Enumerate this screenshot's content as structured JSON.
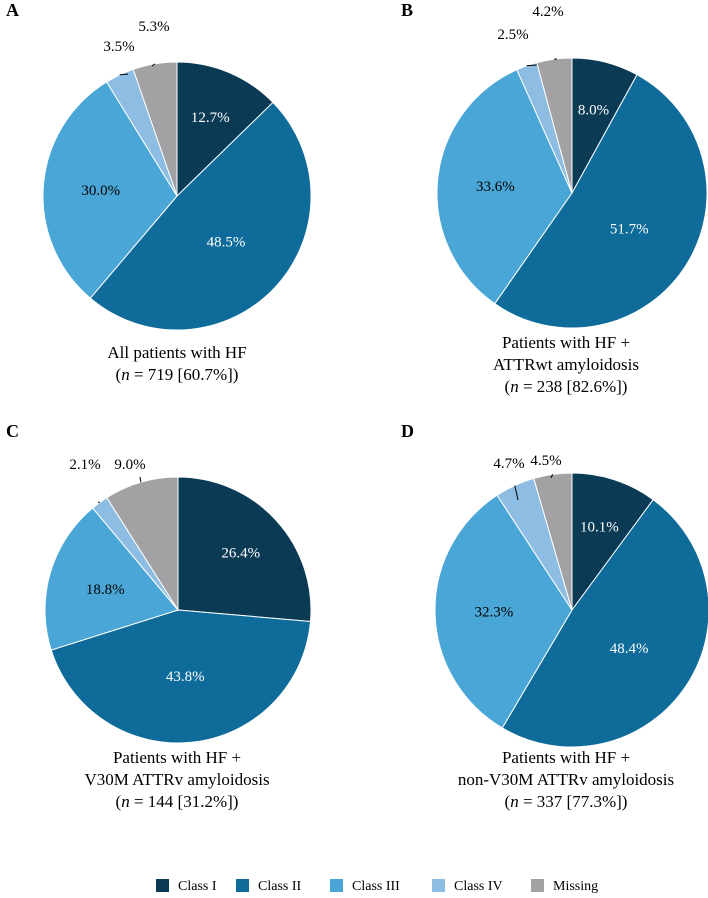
{
  "legend": [
    {
      "label": "Class I",
      "color": "#0b3a55"
    },
    {
      "label": "Class II",
      "color": "#0e6b9a"
    },
    {
      "label": "Class III",
      "color": "#4aa6d6"
    },
    {
      "label": "Class IV",
      "color": "#8dbde2"
    },
    {
      "label": "Missing",
      "color": "#a2a2a5"
    }
  ],
  "chart_data": [
    {
      "type": "pie",
      "panel": "A",
      "categories": [
        "Class I",
        "Class II",
        "Class III",
        "Class IV",
        "Missing"
      ],
      "values": [
        12.7,
        48.5,
        30.0,
        3.5,
        5.3
      ],
      "labels": [
        "12.7%",
        "48.5%",
        "30.0%",
        "3.5%",
        "5.3%"
      ],
      "caption": [
        "All patients with HF"
      ],
      "n_prefix": "(",
      "n_var": "n",
      "n_suffix": " = 719 [60.7%])"
    },
    {
      "type": "pie",
      "panel": "B",
      "categories": [
        "Class I",
        "Class II",
        "Class III",
        "Class IV",
        "Missing"
      ],
      "values": [
        8.0,
        51.7,
        33.6,
        2.5,
        4.2
      ],
      "labels": [
        "8.0%",
        "51.7%",
        "33.6%",
        "2.5%",
        "4.2%"
      ],
      "caption": [
        "Patients with HF +",
        "ATTRwt amyloidosis"
      ],
      "n_prefix": "(",
      "n_var": "n",
      "n_suffix": " = 238 [82.6%])"
    },
    {
      "type": "pie",
      "panel": "C",
      "categories": [
        "Class I",
        "Class II",
        "Class III",
        "Class IV",
        "Missing"
      ],
      "values": [
        26.4,
        43.8,
        18.8,
        2.1,
        9.0
      ],
      "labels": [
        "26.4%",
        "43.8%",
        "18.8%",
        "2.1%",
        "9.0%"
      ],
      "caption": [
        "Patients with HF +",
        "V30M ATTRv amyloidosis"
      ],
      "n_prefix": "(",
      "n_var": "n",
      "n_suffix": " = 144 [31.2%])"
    },
    {
      "type": "pie",
      "panel": "D",
      "categories": [
        "Class I",
        "Class II",
        "Class III",
        "Class IV",
        "Missing"
      ],
      "values": [
        10.1,
        48.4,
        32.3,
        4.7,
        4.5
      ],
      "labels": [
        "10.1%",
        "48.4%",
        "32.3%",
        "4.7%",
        "4.5%"
      ],
      "caption": [
        "Patients with HF +",
        "non-V30M ATTRv amyloidosis"
      ],
      "n_prefix": "(",
      "n_var": "n",
      "n_suffix": " = 337 [77.3%])"
    }
  ]
}
